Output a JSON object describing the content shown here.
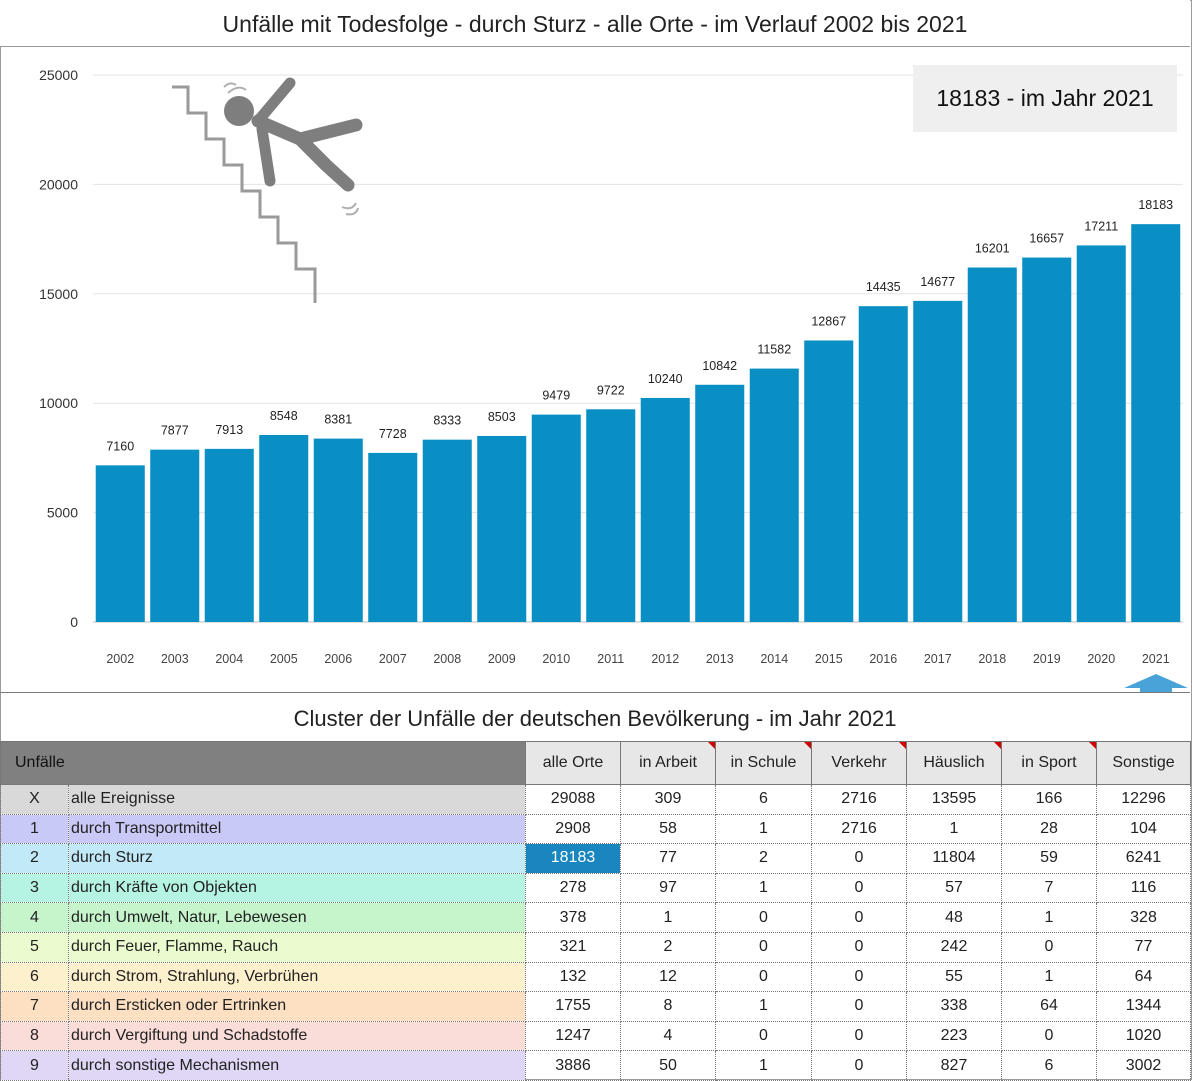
{
  "chart_title": "Unfälle mit Todesfolge - durch Sturz - alle Orte - im Verlauf 2002 bis 2021",
  "callout": "18183 - im Jahr 2021",
  "chart_data": {
    "type": "bar",
    "title": "Unfälle mit Todesfolge - durch Sturz - alle Orte - im Verlauf 2002 bis 2021",
    "categories": [
      "2002",
      "2003",
      "2004",
      "2005",
      "2006",
      "2007",
      "2008",
      "2009",
      "2010",
      "2011",
      "2012",
      "2013",
      "2014",
      "2015",
      "2016",
      "2017",
      "2018",
      "2019",
      "2020",
      "2021"
    ],
    "values": [
      7160,
      7877,
      7913,
      8548,
      8381,
      7728,
      8333,
      8503,
      9479,
      9722,
      10240,
      10842,
      11582,
      12867,
      14435,
      14677,
      16201,
      16657,
      17211,
      18183
    ],
    "ylim": [
      0,
      25000
    ],
    "yticks": [
      0,
      5000,
      10000,
      15000,
      20000,
      25000
    ],
    "bar_color": "#0a8fc4",
    "grid": true,
    "data_labels": true,
    "xlabel": "",
    "ylabel": ""
  },
  "table": {
    "title": "Cluster der Unfälle der deutschen Bevölkerung - im Jahr 2021",
    "corner_label": "Unfälle",
    "columns": [
      "alle Orte",
      "in Arbeit",
      "in Schule",
      "Verkehr",
      "Häuslich",
      "in Sport",
      "Sonstige"
    ],
    "rows": [
      {
        "id": "X",
        "label": "alle Ereignisse",
        "color": "#d9d9d9",
        "values": [
          "29088",
          "309",
          "6",
          "2716",
          "13595",
          "166",
          "12296"
        ]
      },
      {
        "id": "1",
        "label": "durch Transportmittel",
        "color": "#c9c9f7",
        "values": [
          "2908",
          "58",
          "1",
          "2716",
          "1",
          "28",
          "104"
        ]
      },
      {
        "id": "2",
        "label": "durch Sturz",
        "color": "#c1e9f8",
        "values": [
          "18183",
          "77",
          "2",
          "0",
          "11804",
          "59",
          "6241"
        ]
      },
      {
        "id": "3",
        "label": "durch Kräfte von Objekten",
        "color": "#b5f3e2",
        "values": [
          "278",
          "97",
          "1",
          "0",
          "57",
          "7",
          "116"
        ]
      },
      {
        "id": "4",
        "label": "durch Umwelt, Natur, Lebewesen",
        "color": "#c6f5cc",
        "values": [
          "378",
          "1",
          "0",
          "0",
          "48",
          "1",
          "328"
        ]
      },
      {
        "id": "5",
        "label": "durch Feuer, Flamme, Rauch",
        "color": "#eafbd0",
        "values": [
          "321",
          "2",
          "0",
          "0",
          "242",
          "0",
          "77"
        ]
      },
      {
        "id": "6",
        "label": "durch Strom, Strahlung, Verbrühen",
        "color": "#fdf0cc",
        "values": [
          "132",
          "12",
          "0",
          "0",
          "55",
          "1",
          "64"
        ]
      },
      {
        "id": "7",
        "label": "durch Ersticken oder Ertrinken",
        "color": "#fde0c2",
        "values": [
          "1755",
          "8",
          "1",
          "0",
          "338",
          "64",
          "1344"
        ]
      },
      {
        "id": "8",
        "label": "durch Vergiftung und Schadstoffe",
        "color": "#fadcd9",
        "values": [
          "1247",
          "4",
          "0",
          "0",
          "223",
          "0",
          "1020"
        ]
      },
      {
        "id": "9",
        "label": "durch sonstige Mechanismen",
        "color": "#e0d6f5",
        "values": [
          "3886",
          "50",
          "1",
          "0",
          "827",
          "6",
          "3002"
        ]
      }
    ],
    "highlight_color": "#1a86bf",
    "highlight_cell": {
      "row": 2,
      "col": 0
    }
  },
  "icons": {
    "falling_person": "falling-person-stairs-icon",
    "marker": "up-arrow-icon"
  },
  "colors": {
    "bar": "#0a8fc4",
    "arrow": "#4aa3d8",
    "header_dark": "#808080",
    "header_light": "#e7e7e7",
    "note_flag": "#d00000"
  }
}
